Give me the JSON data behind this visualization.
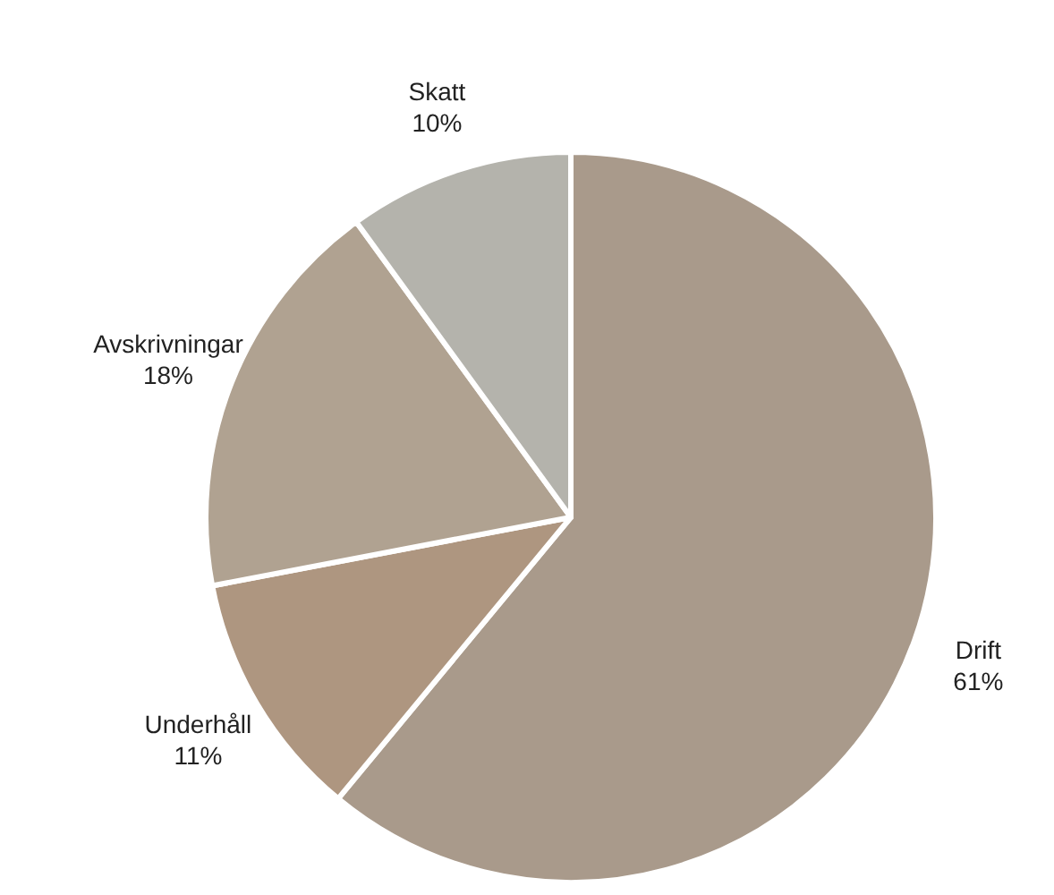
{
  "chart_data": {
    "type": "pie",
    "categories": [
      "Drift",
      "Underhåll",
      "Avskrivningar",
      "Skatt"
    ],
    "values": [
      61,
      11,
      18,
      10
    ],
    "value_labels": [
      "61%",
      "11%",
      "18%",
      "10%"
    ],
    "colors": [
      "#a99a8b",
      "#ae9680",
      "#b0a291",
      "#b4b3ac"
    ],
    "legend": false
  }
}
